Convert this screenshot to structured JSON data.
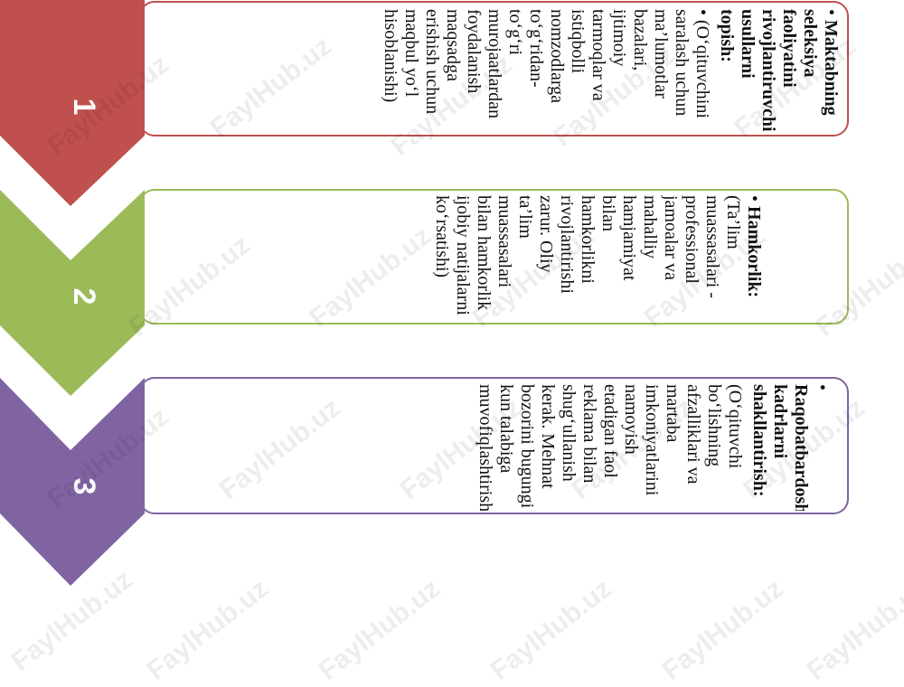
{
  "steps": [
    {
      "number": "1",
      "color": "#c0504d",
      "heading": "Maktabning seleksiya faoliyatini rivojlantiruvchi usullarni topish:",
      "body": "(O‘qituvchini saralash uchun ma’lumotlar bazalari, ijtimoiy tarmoqlar va istiqbolli nomzodlarga to‘g‘ridan-to‘g‘ri murojaatlardan foydalanish maqsadga erishish uchun maqbul yo‘l hisoblanishi)"
    },
    {
      "number": "2",
      "color": "#9bbb59",
      "heading": "Hamkorlik:",
      "body": "(Ta’lim muassasalari - professional jamoalar va mahalliy hamjamiyat bilan hamkorlikni rivojlantirishi zarur. Oliy ta’lim muassasalari bilan hamkorlik ijobiy natijalarni ko‘rsatishi)"
    },
    {
      "number": "3",
      "color": "#8064a2",
      "heading": "Raqobatbardosh kadrlarni shakllantirish:",
      "body": "(O‘qituvchi bo‘lishning afzalliklari va martaba imkoniyatlarini namoyish etadigan faol reklama bilan shug‘ullanish kerak. Mehnat bozorini bugungi kun talabiga muvofiqlashtirish)"
    }
  ],
  "watermark": "FaylHub.uz"
}
